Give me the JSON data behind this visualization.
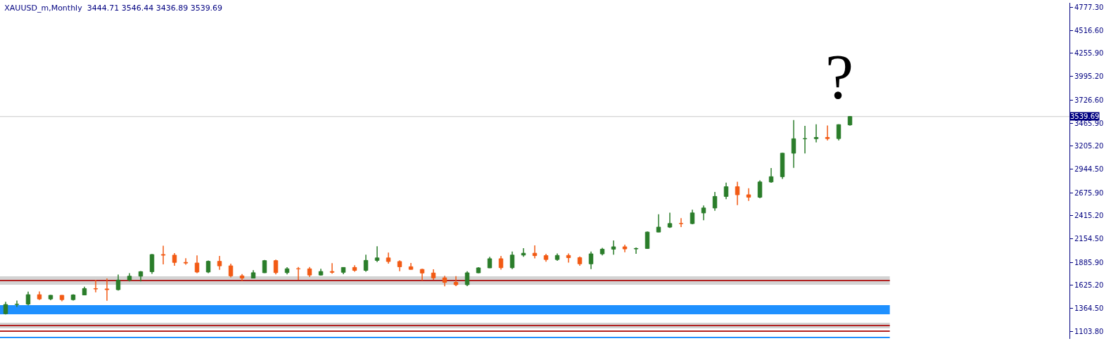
{
  "chart_data": {
    "type": "candlestick",
    "title": "XAUUSD_m,Monthly  3444.71 3546.44 3436.89 3539.69",
    "categories": [
      null,
      null,
      null,
      null,
      null,
      null,
      null,
      null,
      null,
      null,
      null,
      null,
      null,
      null,
      null,
      null,
      null,
      null,
      null,
      null,
      null,
      null,
      null,
      null,
      null,
      null,
      null,
      null,
      null,
      null,
      null,
      null,
      null,
      null,
      null,
      null,
      null,
      null,
      null,
      null,
      null,
      null,
      null,
      null,
      null,
      null,
      null,
      null,
      null,
      null,
      null,
      null,
      null,
      null,
      null,
      null,
      null,
      null,
      null,
      null,
      null,
      null,
      null,
      null,
      null,
      null,
      null,
      null,
      null,
      null,
      null,
      null,
      null,
      null,
      null,
      null,
      null,
      null,
      null,
      null,
      null,
      null,
      null,
      null,
      null,
      null,
      null,
      null,
      null,
      null,
      null,
      null,
      null,
      null,
      null
    ],
    "ohlc": [
      [
        1305,
        1439,
        1296,
        1409
      ],
      [
        1409,
        1453,
        1382,
        1413
      ],
      [
        1413,
        1555,
        1400,
        1520
      ],
      [
        1520,
        1557,
        1459,
        1472
      ],
      [
        1472,
        1518,
        1458,
        1513
      ],
      [
        1513,
        1516,
        1445,
        1464
      ],
      [
        1464,
        1525,
        1454,
        1517
      ],
      [
        1517,
        1611,
        1517,
        1589
      ],
      [
        1589,
        1689,
        1548,
        1585
      ],
      [
        1585,
        1704,
        1451,
        1577
      ],
      [
        1577,
        1748,
        1567,
        1686
      ],
      [
        1686,
        1765,
        1670,
        1730
      ],
      [
        1730,
        1789,
        1671,
        1781
      ],
      [
        1781,
        1981,
        1757,
        1975
      ],
      [
        1975,
        2075,
        1863,
        1968
      ],
      [
        1968,
        1992,
        1848,
        1886
      ],
      [
        1886,
        1933,
        1860,
        1879
      ],
      [
        1879,
        1965,
        1765,
        1777
      ],
      [
        1777,
        1907,
        1765,
        1898
      ],
      [
        1898,
        1959,
        1802,
        1847
      ],
      [
        1847,
        1872,
        1717,
        1734
      ],
      [
        1734,
        1755,
        1677,
        1708
      ],
      [
        1708,
        1798,
        1706,
        1769
      ],
      [
        1769,
        1913,
        1766,
        1906
      ],
      [
        1906,
        1917,
        1750,
        1770
      ],
      [
        1770,
        1832,
        1751,
        1814
      ],
      [
        1814,
        1834,
        1688,
        1813
      ],
      [
        1813,
        1834,
        1721,
        1743
      ],
      [
        1743,
        1814,
        1736,
        1783
      ],
      [
        1783,
        1877,
        1758,
        1774
      ],
      [
        1774,
        1832,
        1753,
        1829
      ],
      [
        1829,
        1853,
        1780,
        1796
      ],
      [
        1796,
        1974,
        1780,
        1909
      ],
      [
        1909,
        2070,
        1890,
        1937
      ],
      [
        1937,
        1998,
        1872,
        1896
      ],
      [
        1896,
        1909,
        1787,
        1837
      ],
      [
        1837,
        1879,
        1805,
        1807
      ],
      [
        1807,
        1814,
        1681,
        1766
      ],
      [
        1766,
        1808,
        1688,
        1711
      ],
      [
        1711,
        1735,
        1615,
        1660
      ],
      [
        1660,
        1730,
        1617,
        1633
      ],
      [
        1633,
        1786,
        1616,
        1768
      ],
      [
        1768,
        1833,
        1765,
        1824
      ],
      [
        1824,
        1949,
        1823,
        1928
      ],
      [
        1928,
        1959,
        1804,
        1826
      ],
      [
        1826,
        2009,
        1810,
        1969
      ],
      [
        1969,
        2048,
        1950,
        1990
      ],
      [
        1990,
        2079,
        1932,
        1963
      ],
      [
        1963,
        1983,
        1893,
        1919
      ],
      [
        1919,
        1987,
        1903,
        1965
      ],
      [
        1965,
        1987,
        1884,
        1940
      ],
      [
        1940,
        1953,
        1848,
        1870
      ],
      [
        1870,
        2009,
        1810,
        1983
      ],
      [
        1983,
        2052,
        1965,
        2036
      ],
      [
        2036,
        2135,
        1973,
        2063
      ],
      [
        2063,
        2088,
        2002,
        2039
      ],
      [
        2039,
        2055,
        1984,
        2044
      ],
      [
        2044,
        2236,
        2039,
        2230
      ],
      [
        2230,
        2431,
        2228,
        2286
      ],
      [
        2286,
        2450,
        2277,
        2327
      ],
      [
        2327,
        2388,
        2286,
        2326
      ],
      [
        2326,
        2484,
        2319,
        2447
      ],
      [
        2447,
        2531,
        2364,
        2503
      ],
      [
        2503,
        2685,
        2471,
        2634
      ],
      [
        2634,
        2790,
        2603,
        2744
      ],
      [
        2744,
        2801,
        2536,
        2653
      ],
      [
        2653,
        2726,
        2583,
        2625
      ],
      [
        2625,
        2817,
        2614,
        2798
      ],
      [
        2798,
        2956,
        2789,
        2858
      ],
      [
        2858,
        3128,
        2833,
        3124
      ],
      [
        3124,
        3500,
        2957,
        3288
      ],
      [
        3288,
        3435,
        3121,
        3289
      ],
      [
        3289,
        3452,
        3246,
        3303
      ],
      [
        3303,
        3439,
        3268,
        3290
      ],
      [
        3290,
        3453,
        3268,
        3448
      ],
      [
        3444.71,
        3546.44,
        3436.89,
        3539.69
      ],
      null,
      null,
      null,
      null,
      null,
      null,
      null,
      null,
      null,
      null,
      null,
      null,
      null,
      null,
      null,
      null,
      null,
      null,
      null
    ],
    "ylim": [
      1019,
      4829
    ],
    "yticks": [
      {
        "value": 1103.8,
        "label": "1103.80"
      },
      {
        "value": 1364.5,
        "label": "1364.50"
      },
      {
        "value": 1625.2,
        "label": "1625.20"
      },
      {
        "value": 1885.9,
        "label": "1885.90"
      },
      {
        "value": 2154.5,
        "label": "2154.50"
      },
      {
        "value": 2415.2,
        "label": "2415.20"
      },
      {
        "value": 2675.9,
        "label": "2675.90"
      },
      {
        "value": 2944.5,
        "label": "2944.50"
      },
      {
        "value": 3205.2,
        "label": "3205.20"
      },
      {
        "value": 3465.9,
        "label": "3465.90"
      },
      {
        "value": 3726.6,
        "label": "3726.60"
      },
      {
        "value": 3995.2,
        "label": "3995.20"
      },
      {
        "value": 4255.9,
        "label": "4255.90"
      },
      {
        "value": 4516.6,
        "label": "4516.60"
      },
      {
        "value": 4777.3,
        "label": "4777.30"
      }
    ],
    "tick_labels": "y",
    "grid": false,
    "bands": [
      {
        "axis": "y",
        "from": 1298,
        "to": 1402,
        "color": "#1e90ff"
      },
      {
        "axis": "y",
        "from": 1633,
        "to": 1729,
        "color": "#d3d3d3"
      },
      {
        "axis": "y",
        "from": 1139,
        "to": 1203,
        "color": "#d3d3d3"
      }
    ],
    "ref_lines": [
      {
        "axis": "y",
        "value": 1681,
        "color": "#b22222"
      },
      {
        "axis": "y",
        "value": 1171,
        "color": "#b22222"
      },
      {
        "axis": "y",
        "value": 1107,
        "color": "#b22222"
      },
      {
        "axis": "y",
        "value": 1035,
        "color": "#1e90ff"
      },
      {
        "axis": "y",
        "value": 3539.69,
        "label": "3539.69",
        "color": "#c8c8c8"
      }
    ],
    "annotations": [
      "?"
    ]
  }
}
